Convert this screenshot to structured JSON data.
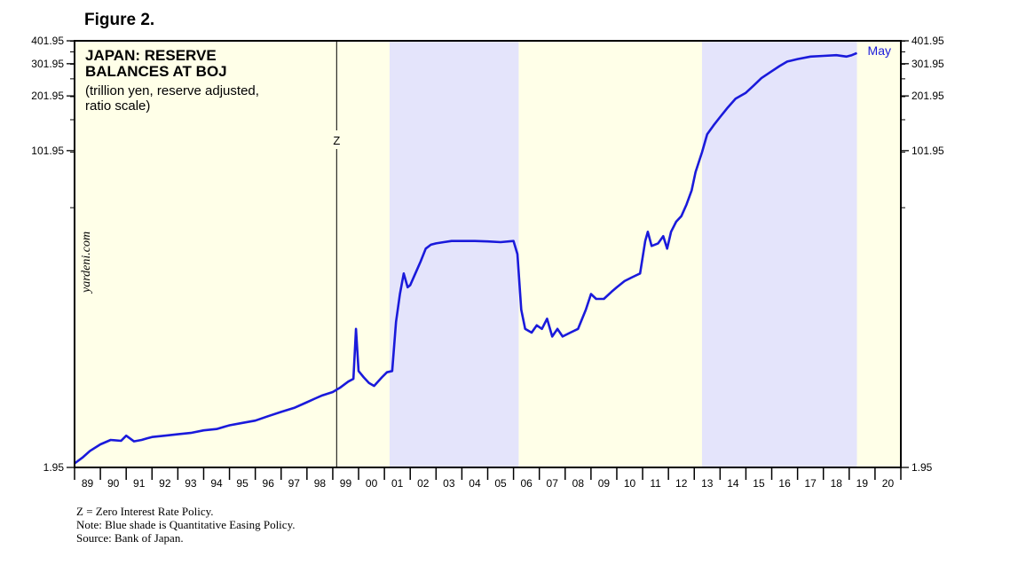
{
  "figure_label": "Figure 2.",
  "chart_data": {
    "type": "line",
    "title_lines": [
      "JAPAN: RESERVE",
      "BALANCES AT BOJ"
    ],
    "subtitle_lines": [
      "(trillion yen, reserve adjusted,",
      "ratio scale)"
    ],
    "watermark": "yardeni.com",
    "y_scale": "log",
    "y_ticks": [
      "401.95",
      "301.95",
      "201.95",
      "101.95",
      "1.95"
    ],
    "y_tick_values": [
      401.95,
      301.95,
      201.95,
      101.95,
      1.95
    ],
    "ylim": [
      1.95,
      401.95
    ],
    "x_tick_labels": [
      "89",
      "90",
      "91",
      "92",
      "93",
      "94",
      "95",
      "96",
      "97",
      "98",
      "99",
      "00",
      "01",
      "02",
      "03",
      "04",
      "05",
      "06",
      "07",
      "08",
      "09",
      "10",
      "11",
      "12",
      "13",
      "14",
      "15",
      "16",
      "17",
      "18",
      "19",
      "20"
    ],
    "xlim": [
      1989.0,
      2021.0
    ],
    "background_color": "#ffffe8",
    "qe_shade_color": "#e4e4fb",
    "line_color": "#1a1adb",
    "shaded_periods": [
      [
        2001.2,
        2006.2
      ],
      [
        2013.3,
        2019.3
      ]
    ],
    "event_marker": {
      "label": "Z",
      "x": 1999.15
    },
    "end_label": "May",
    "series": [
      {
        "x": [
          1989.0,
          1989.3,
          1989.6,
          1990.0,
          1990.4,
          1990.8,
          1991.0,
          1991.3,
          1991.6,
          1991.8,
          1992.0,
          1992.5,
          1993.0,
          1993.5,
          1994.0,
          1994.5,
          1995.0,
          1995.5,
          1996.0,
          1996.5,
          1997.0,
          1997.5,
          1998.0,
          1998.3,
          1998.6,
          1999.0,
          1999.3,
          1999.6,
          1999.8,
          1999.9,
          2000.0,
          2000.2,
          2000.4,
          2000.6,
          2000.9,
          2001.1,
          2001.3,
          2001.45,
          2001.6,
          2001.75,
          2001.9,
          2002.0,
          2002.2,
          2002.4,
          2002.6,
          2002.8,
          2003.0,
          2003.3,
          2003.6,
          2004.0,
          2004.5,
          2005.0,
          2005.5,
          2006.0,
          2006.15,
          2006.3,
          2006.45,
          2006.7,
          2006.9,
          2007.1,
          2007.3,
          2007.5,
          2007.7,
          2007.9,
          2008.2,
          2008.5,
          2008.8,
          2009.0,
          2009.2,
          2009.5,
          2009.8,
          2010.0,
          2010.3,
          2010.6,
          2010.9,
          2011.1,
          2011.2,
          2011.35,
          2011.6,
          2011.8,
          2011.95,
          2012.1,
          2012.3,
          2012.5,
          2012.7,
          2012.9,
          2013.05,
          2013.3,
          2013.5,
          2013.75,
          2014.0,
          2014.3,
          2014.6,
          2015.0,
          2015.3,
          2015.6,
          2016.0,
          2016.3,
          2016.6,
          2017.0,
          2017.5,
          2018.0,
          2018.5,
          2018.9,
          2019.1,
          2019.3
        ],
        "values": [
          2.05,
          2.2,
          2.4,
          2.6,
          2.75,
          2.72,
          2.9,
          2.7,
          2.75,
          2.8,
          2.85,
          2.9,
          2.95,
          3.0,
          3.1,
          3.15,
          3.3,
          3.4,
          3.5,
          3.7,
          3.9,
          4.1,
          4.4,
          4.6,
          4.8,
          5.0,
          5.3,
          5.7,
          5.9,
          11.0,
          6.5,
          6.0,
          5.6,
          5.4,
          6.0,
          6.4,
          6.5,
          12.0,
          17.0,
          22.0,
          18.5,
          19.0,
          22.0,
          25.5,
          30.0,
          31.5,
          32.0,
          32.5,
          33.0,
          33.0,
          33.0,
          32.8,
          32.5,
          33.0,
          28.0,
          14.0,
          11.0,
          10.5,
          11.5,
          11.0,
          12.5,
          10.0,
          11.0,
          10.0,
          10.5,
          11.0,
          14.0,
          17.0,
          16.0,
          16.0,
          17.5,
          18.5,
          20.0,
          21.0,
          22.0,
          33.0,
          37.0,
          31.0,
          32.0,
          35.0,
          30.0,
          37.0,
          42.0,
          45.0,
          52.0,
          62.0,
          78.0,
          100.0,
          125.0,
          140.0,
          155.0,
          175.0,
          195.0,
          210.0,
          230.0,
          252.0,
          275.0,
          293.0,
          310.0,
          320.0,
          330.0,
          333.0,
          336.0,
          330.0,
          336.0,
          345.0
        ]
      }
    ],
    "notes": [
      "Z = Zero Interest Rate Policy.",
      "Note: Blue shade is Quantitative Easing Policy.",
      "Source: Bank of Japan."
    ]
  }
}
